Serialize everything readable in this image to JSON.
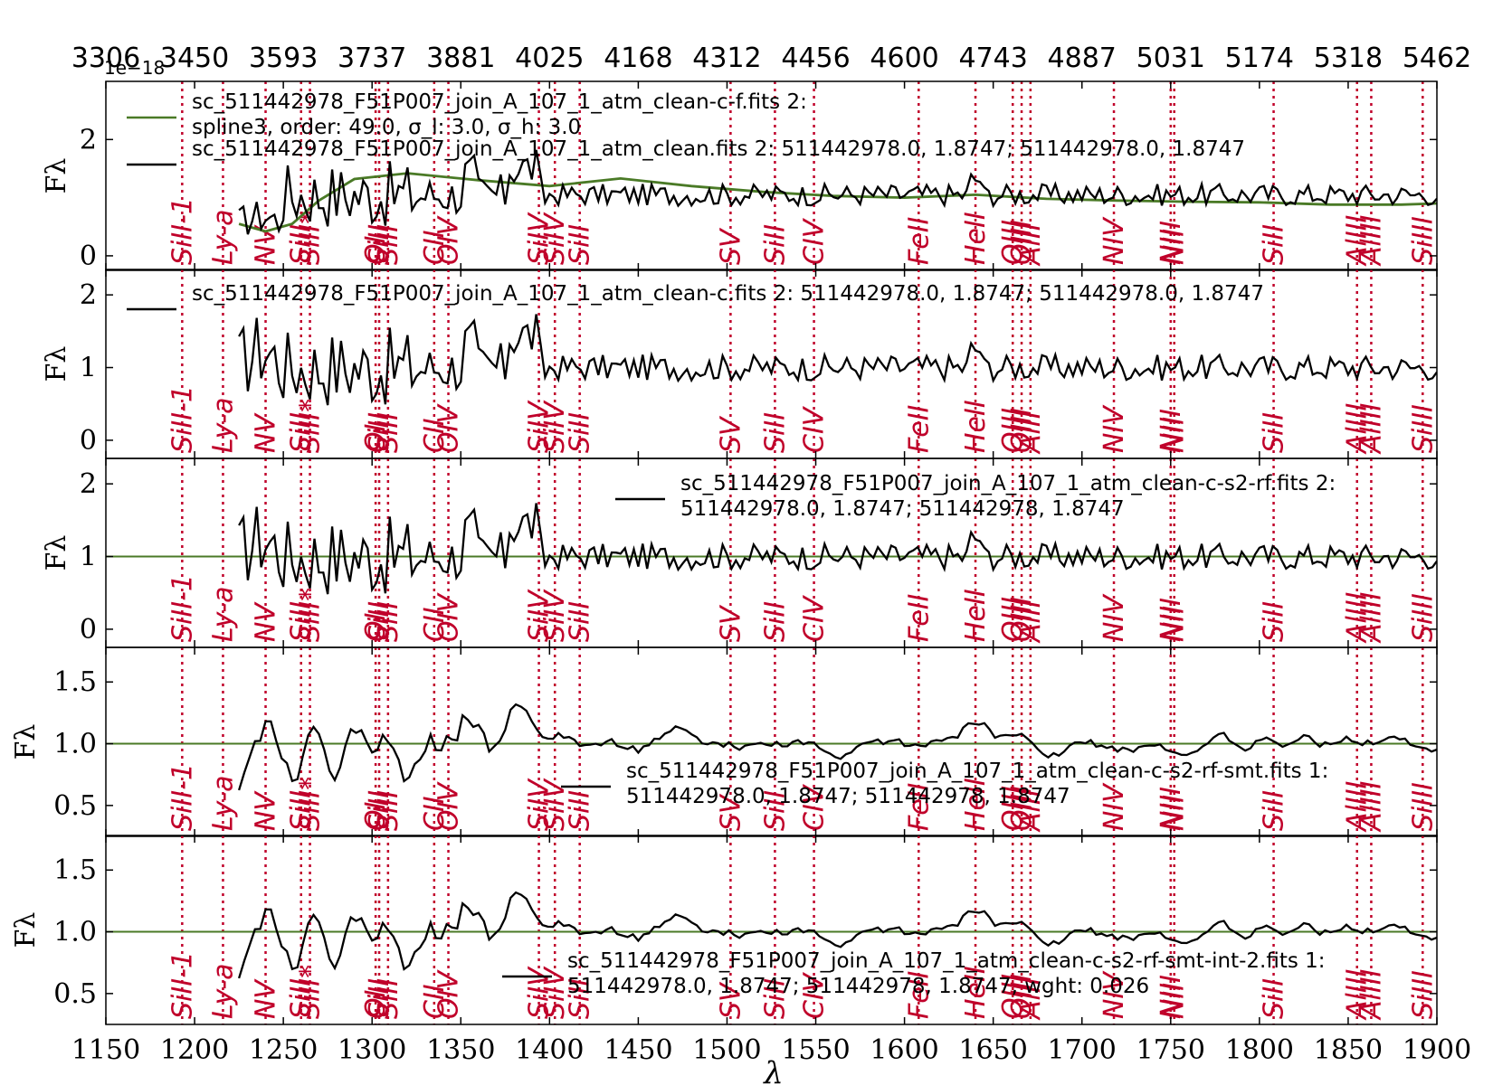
{
  "colors": {
    "spectrum": "#000000",
    "fit": "#4a7a26",
    "lines": "#c0002a",
    "axes": "#000000"
  },
  "chart_data": {
    "type": "line",
    "xlabel": "λ",
    "xlim": [
      1150,
      1900
    ],
    "xticks": [
      "1150",
      "1200",
      "1250",
      "1300",
      "1350",
      "1400",
      "1450",
      "1500",
      "1550",
      "1600",
      "1650",
      "1700",
      "1750",
      "1800",
      "1850",
      "1900"
    ],
    "top_xticks": [
      "3306",
      "3450",
      "3593",
      "3737",
      "3881",
      "4025",
      "4168",
      "4312",
      "4456",
      "4600",
      "4743",
      "4887",
      "5031",
      "5174",
      "5318",
      "5462"
    ],
    "offset_text": "1e−18",
    "ylabel": "Fλ",
    "line_list": [
      {
        "name": "SiII-1",
        "x": 1193
      },
      {
        "name": "Ly-a",
        "x": 1216
      },
      {
        "name": "NV",
        "x": 1240
      },
      {
        "name": "SiII*",
        "x": 1265
      },
      {
        "name": "SiII",
        "x": 1260
      },
      {
        "name": "OI",
        "x": 1302
      },
      {
        "name": "SiII",
        "x": 1304
      },
      {
        "name": "SiII",
        "x": 1309
      },
      {
        "name": "CII",
        "x": 1335
      },
      {
        "name": "OIV",
        "x": 1343
      },
      {
        "name": "SiIV",
        "x": 1394
      },
      {
        "name": "SiIV",
        "x": 1403
      },
      {
        "name": "SiII",
        "x": 1417
      },
      {
        "name": "SV",
        "x": 1502
      },
      {
        "name": "SiII",
        "x": 1527
      },
      {
        "name": "CIV",
        "x": 1549
      },
      {
        "name": "FeII",
        "x": 1608
      },
      {
        "name": "HeII",
        "x": 1640
      },
      {
        "name": "OIII",
        "x": 1661
      },
      {
        "name": "OIII",
        "x": 1666
      },
      {
        "name": "AlII",
        "x": 1671
      },
      {
        "name": "NIV",
        "x": 1718
      },
      {
        "name": "NIII",
        "x": 1750
      },
      {
        "name": "NII",
        "x": 1752
      },
      {
        "name": "SiII",
        "x": 1808
      },
      {
        "name": "AlIII",
        "x": 1855
      },
      {
        "name": "AlIII",
        "x": 1863
      },
      {
        "name": "SiIII",
        "x": 1892
      }
    ],
    "panels": [
      {
        "ylim": [
          -0.25,
          3.0
        ],
        "yticks": [
          "0",
          "2"
        ],
        "ytick_values": [
          0,
          2
        ],
        "fit_type": "spline",
        "fit": {
          "x": [
            1225,
            1240,
            1255,
            1270,
            1290,
            1320,
            1360,
            1400,
            1440,
            1480,
            1520,
            1560,
            1600,
            1640,
            1680,
            1720,
            1760,
            1800,
            1840,
            1880,
            1900
          ],
          "y": [
            0.55,
            0.42,
            0.55,
            0.95,
            1.32,
            1.42,
            1.3,
            1.2,
            1.33,
            1.2,
            1.1,
            1.03,
            1.0,
            1.05,
            0.98,
            0.95,
            0.93,
            0.92,
            0.88,
            0.88,
            0.9
          ]
        },
        "legend": [
          {
            "label": "sc_511442978_F51P007_join_A_107_1_atm_clean-c-f.fits 2:",
            "label2": "spline3, order: 49.0, σ_l: 3.0, σ_h: 3.0",
            "color": "#4a7a26"
          },
          {
            "label": "sc_511442978_F51P007_join_A_107_1_atm_clean.fits 2:   511442978.0,  1.8747;  511442978.0,  1.8747",
            "label2": "",
            "color": "#000000"
          }
        ]
      },
      {
        "ylim": [
          -0.25,
          2.35
        ],
        "yticks": [
          "0",
          "1",
          "2"
        ],
        "ytick_values": [
          0,
          1,
          2
        ],
        "fit_type": "none",
        "legend": [
          {
            "label": "sc_511442978_F51P007_join_A_107_1_atm_clean-c.fits 2:   511442978.0,  1.8747;  511442978.0,  1.8747",
            "label2": "",
            "color": "#000000"
          }
        ]
      },
      {
        "ylim": [
          -0.25,
          2.35
        ],
        "yticks": [
          "0",
          "1",
          "2"
        ],
        "ytick_values": [
          0,
          1,
          2
        ],
        "fit_type": "hline",
        "hline": 1.0,
        "legend": [
          {
            "label": "sc_511442978_F51P007_join_A_107_1_atm_clean-c-s2-rf.fits 2:",
            "label2": "511442978.0,  1.8747;  511442978,  1.8747",
            "color": "#000000"
          }
        ]
      },
      {
        "ylim": [
          0.25,
          1.78
        ],
        "yticks": [
          "0.5",
          "1.0",
          "1.5"
        ],
        "ytick_values": [
          0.5,
          1.0,
          1.5
        ],
        "fit_type": "hline",
        "hline": 1.0,
        "legend": [
          {
            "label": "sc_511442978_F51P007_join_A_107_1_atm_clean-c-s2-rf-smt.fits 1:",
            "label2": "511442978.0,  1.8747;  511442978,  1.8747",
            "color": "#000000"
          }
        ]
      },
      {
        "ylim": [
          0.25,
          1.78
        ],
        "yticks": [
          "0.5",
          "1.0",
          "1.5"
        ],
        "ytick_values": [
          0.5,
          1.0,
          1.5
        ],
        "fit_type": "hline",
        "hline": 1.0,
        "legend": [
          {
            "label": "sc_511442978_F51P007_join_A_107_1_atm_clean-c-s2-rf-smt-int-2.fits 1:",
            "label2": "511442978.0,  1.8747;  511442978,  1.8747, wght: 0.026",
            "color": "#000000"
          }
        ]
      }
    ]
  }
}
